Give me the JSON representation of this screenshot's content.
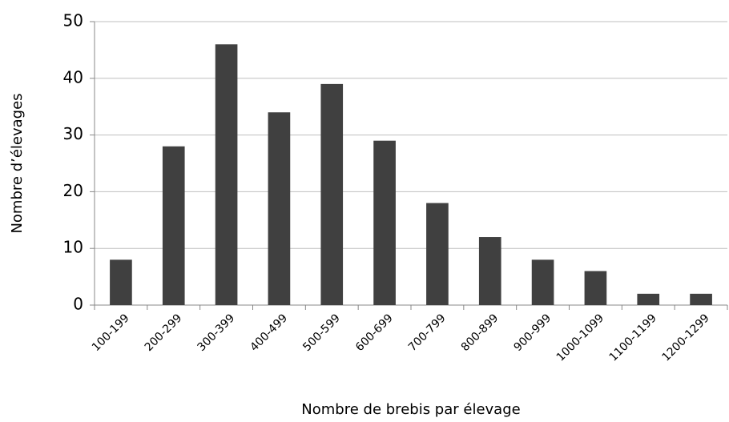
{
  "chart_data": {
    "type": "bar",
    "xlabel": "Nombre de brebis par élevage",
    "ylabel": "Nombre d’élevages",
    "categories": [
      "100-199",
      "200-299",
      "300-399",
      "400-499",
      "500-599",
      "600-699",
      "700-799",
      "800-899",
      "900-999",
      "1000-1099",
      "1100-1199",
      "1200-1299"
    ],
    "values": [
      8,
      28,
      46,
      34,
      39,
      29,
      18,
      12,
      8,
      6,
      2,
      2
    ],
    "color": "#404040",
    "ylim": [
      0,
      50
    ],
    "yticks": [
      0,
      10,
      20,
      30,
      40,
      50
    ],
    "grid": true
  }
}
